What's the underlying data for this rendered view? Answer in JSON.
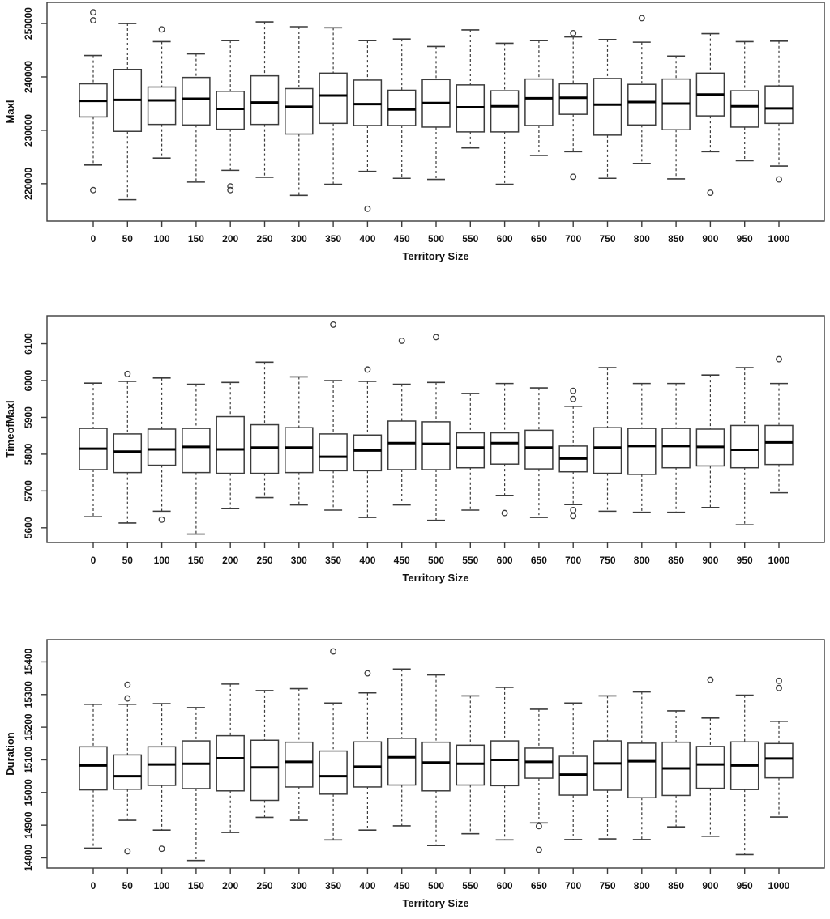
{
  "figure": {
    "background": "#ffffff",
    "line_color": "#3c3c3c",
    "median_color": "#000000",
    "box_fill": "#ffffff"
  },
  "chart_data": [
    {
      "type": "boxplot",
      "title": "",
      "xlabel": "Territory Size",
      "ylabel": "MaxI",
      "legend": "none",
      "grid": false,
      "categories": [
        "0",
        "50",
        "100",
        "150",
        "200",
        "250",
        "300",
        "350",
        "400",
        "450",
        "500",
        "550",
        "600",
        "650",
        "700",
        "750",
        "800",
        "850",
        "900",
        "950",
        "1000"
      ],
      "ylim": [
        213000,
        253950
      ],
      "yticks": [
        220000,
        230000,
        240000,
        250000
      ],
      "boxes": [
        {
          "lo": 223500,
          "q1": 232500,
          "med": 235500,
          "q3": 238700,
          "hi": 244000,
          "out": [
            252100,
            250600,
            218800
          ]
        },
        {
          "lo": 217000,
          "q1": 229800,
          "med": 235700,
          "q3": 241400,
          "hi": 250000,
          "out": []
        },
        {
          "lo": 224800,
          "q1": 231100,
          "med": 235600,
          "q3": 238100,
          "hi": 246600,
          "out": [
            248900
          ]
        },
        {
          "lo": 220300,
          "q1": 231000,
          "med": 235900,
          "q3": 239900,
          "hi": 244300,
          "out": []
        },
        {
          "lo": 222500,
          "q1": 230200,
          "med": 234000,
          "q3": 237300,
          "hi": 246800,
          "out": [
            219500,
            218800
          ]
        },
        {
          "lo": 221200,
          "q1": 231100,
          "med": 235200,
          "q3": 240200,
          "hi": 250300,
          "out": []
        },
        {
          "lo": 217800,
          "q1": 229300,
          "med": 234400,
          "q3": 237800,
          "hi": 249400,
          "out": []
        },
        {
          "lo": 219900,
          "q1": 231300,
          "med": 236500,
          "q3": 240700,
          "hi": 249200,
          "out": []
        },
        {
          "lo": 222300,
          "q1": 230900,
          "med": 234900,
          "q3": 239400,
          "hi": 246800,
          "out": [
            215300
          ]
        },
        {
          "lo": 221000,
          "q1": 230900,
          "med": 233900,
          "q3": 237500,
          "hi": 247100,
          "out": []
        },
        {
          "lo": 220800,
          "q1": 230600,
          "med": 235100,
          "q3": 239500,
          "hi": 245700,
          "out": []
        },
        {
          "lo": 226700,
          "q1": 229700,
          "med": 234300,
          "q3": 238500,
          "hi": 248800,
          "out": []
        },
        {
          "lo": 219900,
          "q1": 229700,
          "med": 234500,
          "q3": 237400,
          "hi": 246300,
          "out": []
        },
        {
          "lo": 225300,
          "q1": 230900,
          "med": 236000,
          "q3": 239600,
          "hi": 246800,
          "out": []
        },
        {
          "lo": 226000,
          "q1": 233000,
          "med": 236100,
          "q3": 238700,
          "hi": 247500,
          "out": [
            248200,
            221300
          ]
        },
        {
          "lo": 221000,
          "q1": 229100,
          "med": 234800,
          "q3": 239700,
          "hi": 247000,
          "out": []
        },
        {
          "lo": 223800,
          "q1": 231000,
          "med": 235300,
          "q3": 238600,
          "hi": 246500,
          "out": [
            251000
          ]
        },
        {
          "lo": 220900,
          "q1": 230100,
          "med": 235000,
          "q3": 239600,
          "hi": 243900,
          "out": []
        },
        {
          "lo": 226000,
          "q1": 232700,
          "med": 236700,
          "q3": 240700,
          "hi": 248100,
          "out": [
            218300
          ]
        },
        {
          "lo": 224300,
          "q1": 230600,
          "med": 234500,
          "q3": 237400,
          "hi": 246600,
          "out": []
        },
        {
          "lo": 223300,
          "q1": 231300,
          "med": 234100,
          "q3": 238300,
          "hi": 246700,
          "out": [
            220800
          ]
        }
      ]
    },
    {
      "type": "boxplot",
      "title": "",
      "xlabel": "Territory Size",
      "ylabel": "TimeofMaxI",
      "legend": "none",
      "grid": false,
      "categories": [
        "0",
        "50",
        "100",
        "150",
        "200",
        "250",
        "300",
        "350",
        "400",
        "450",
        "500",
        "550",
        "600",
        "650",
        "700",
        "750",
        "800",
        "850",
        "900",
        "950",
        "1000"
      ],
      "ylim": [
        5560,
        6176
      ],
      "yticks": [
        5600,
        5700,
        5800,
        5900,
        6000,
        6100
      ],
      "boxes": [
        {
          "lo": 5630,
          "q1": 5758,
          "med": 5815,
          "q3": 5870,
          "hi": 5993,
          "out": []
        },
        {
          "lo": 5613,
          "q1": 5750,
          "med": 5807,
          "q3": 5855,
          "hi": 5998,
          "out": [
            6018
          ]
        },
        {
          "lo": 5645,
          "q1": 5770,
          "med": 5813,
          "q3": 5868,
          "hi": 6007,
          "out": [
            5622
          ]
        },
        {
          "lo": 5583,
          "q1": 5750,
          "med": 5820,
          "q3": 5870,
          "hi": 5990,
          "out": []
        },
        {
          "lo": 5652,
          "q1": 5748,
          "med": 5813,
          "q3": 5902,
          "hi": 5995,
          "out": []
        },
        {
          "lo": 5682,
          "q1": 5748,
          "med": 5818,
          "q3": 5880,
          "hi": 6050,
          "out": []
        },
        {
          "lo": 5662,
          "q1": 5750,
          "med": 5818,
          "q3": 5872,
          "hi": 6010,
          "out": []
        },
        {
          "lo": 5648,
          "q1": 5755,
          "med": 5793,
          "q3": 5855,
          "hi": 6000,
          "out": [
            6152
          ]
        },
        {
          "lo": 5628,
          "q1": 5755,
          "med": 5810,
          "q3": 5852,
          "hi": 5998,
          "out": [
            6030
          ]
        },
        {
          "lo": 5662,
          "q1": 5758,
          "med": 5830,
          "q3": 5890,
          "hi": 5990,
          "out": [
            6108
          ]
        },
        {
          "lo": 5620,
          "q1": 5758,
          "med": 5828,
          "q3": 5888,
          "hi": 5995,
          "out": [
            6118
          ]
        },
        {
          "lo": 5648,
          "q1": 5763,
          "med": 5818,
          "q3": 5858,
          "hi": 5965,
          "out": []
        },
        {
          "lo": 5688,
          "q1": 5773,
          "med": 5830,
          "q3": 5858,
          "hi": 5992,
          "out": [
            5640
          ]
        },
        {
          "lo": 5628,
          "q1": 5760,
          "med": 5818,
          "q3": 5865,
          "hi": 5980,
          "out": []
        },
        {
          "lo": 5663,
          "q1": 5752,
          "med": 5788,
          "q3": 5822,
          "hi": 5930,
          "out": [
            5972,
            5950,
            5648,
            5632
          ]
        },
        {
          "lo": 5645,
          "q1": 5748,
          "med": 5818,
          "q3": 5872,
          "hi": 6035,
          "out": []
        },
        {
          "lo": 5642,
          "q1": 5745,
          "med": 5822,
          "q3": 5870,
          "hi": 5992,
          "out": []
        },
        {
          "lo": 5642,
          "q1": 5763,
          "med": 5822,
          "q3": 5870,
          "hi": 5992,
          "out": []
        },
        {
          "lo": 5655,
          "q1": 5768,
          "med": 5820,
          "q3": 5868,
          "hi": 6015,
          "out": []
        },
        {
          "lo": 5608,
          "q1": 5763,
          "med": 5812,
          "q3": 5878,
          "hi": 6035,
          "out": []
        },
        {
          "lo": 5695,
          "q1": 5772,
          "med": 5832,
          "q3": 5878,
          "hi": 5992,
          "out": [
            6058
          ]
        }
      ]
    },
    {
      "type": "boxplot",
      "title": "",
      "xlabel": "Territory Size",
      "ylabel": "Duration",
      "legend": "none",
      "grid": false,
      "categories": [
        "0",
        "50",
        "100",
        "150",
        "200",
        "250",
        "300",
        "350",
        "400",
        "450",
        "500",
        "550",
        "600",
        "650",
        "700",
        "750",
        "800",
        "850",
        "900",
        "950",
        "1000"
      ],
      "ylim": [
        14769,
        15468
      ],
      "yticks": [
        14800,
        14900,
        15000,
        15100,
        15200,
        15300,
        15400
      ],
      "boxes": [
        {
          "lo": 14830,
          "q1": 15008,
          "med": 15083,
          "q3": 15140,
          "hi": 15270,
          "out": []
        },
        {
          "lo": 14915,
          "q1": 15010,
          "med": 15050,
          "q3": 15115,
          "hi": 15270,
          "out": [
            15330,
            15288,
            14820
          ]
        },
        {
          "lo": 14885,
          "q1": 15022,
          "med": 15086,
          "q3": 15140,
          "hi": 15272,
          "out": [
            14828
          ]
        },
        {
          "lo": 14792,
          "q1": 15012,
          "med": 15088,
          "q3": 15158,
          "hi": 15260,
          "out": []
        },
        {
          "lo": 14878,
          "q1": 15005,
          "med": 15105,
          "q3": 15174,
          "hi": 15332,
          "out": []
        },
        {
          "lo": 14924,
          "q1": 14976,
          "med": 15077,
          "q3": 15160,
          "hi": 15312,
          "out": []
        },
        {
          "lo": 14915,
          "q1": 15017,
          "med": 15094,
          "q3": 15154,
          "hi": 15318,
          "out": []
        },
        {
          "lo": 14855,
          "q1": 14995,
          "med": 15050,
          "q3": 15127,
          "hi": 15274,
          "out": [
            15432
          ]
        },
        {
          "lo": 14885,
          "q1": 15017,
          "med": 15079,
          "q3": 15155,
          "hi": 15305,
          "out": [
            15365
          ]
        },
        {
          "lo": 14898,
          "q1": 15023,
          "med": 15108,
          "q3": 15166,
          "hi": 15378,
          "out": []
        },
        {
          "lo": 14838,
          "q1": 15005,
          "med": 15092,
          "q3": 15154,
          "hi": 15360,
          "out": []
        },
        {
          "lo": 14874,
          "q1": 15023,
          "med": 15088,
          "q3": 15145,
          "hi": 15296,
          "out": []
        },
        {
          "lo": 14855,
          "q1": 15021,
          "med": 15100,
          "q3": 15158,
          "hi": 15322,
          "out": []
        },
        {
          "lo": 14907,
          "q1": 15044,
          "med": 15094,
          "q3": 15136,
          "hi": 15255,
          "out": [
            14897,
            14825
          ]
        },
        {
          "lo": 14856,
          "q1": 14992,
          "med": 15055,
          "q3": 15111,
          "hi": 15274,
          "out": []
        },
        {
          "lo": 14858,
          "q1": 15007,
          "med": 15089,
          "q3": 15158,
          "hi": 15296,
          "out": []
        },
        {
          "lo": 14856,
          "q1": 14984,
          "med": 15096,
          "q3": 15151,
          "hi": 15308,
          "out": []
        },
        {
          "lo": 14895,
          "q1": 14991,
          "med": 15074,
          "q3": 15154,
          "hi": 15250,
          "out": []
        },
        {
          "lo": 14866,
          "q1": 15013,
          "med": 15086,
          "q3": 15141,
          "hi": 15228,
          "out": [
            15345
          ]
        },
        {
          "lo": 14810,
          "q1": 15009,
          "med": 15083,
          "q3": 15155,
          "hi": 15298,
          "out": []
        },
        {
          "lo": 14925,
          "q1": 15045,
          "med": 15104,
          "q3": 15150,
          "hi": 15218,
          "out": [
            15342,
            15320
          ]
        }
      ]
    }
  ]
}
